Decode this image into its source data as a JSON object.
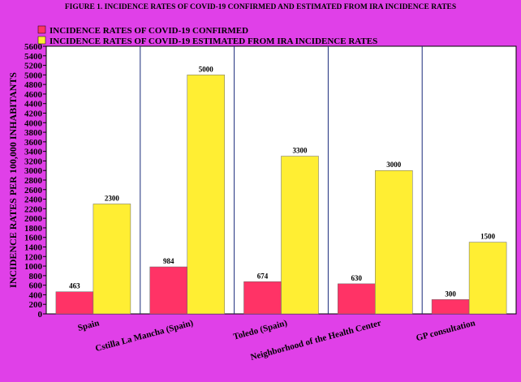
{
  "chart_data": {
    "type": "bar",
    "title": "FIGURE 1. INCIDENCE RATES OF COVID-19 CONFIRMED AND ESTIMATED FROM IRA INCIDENCE RATES",
    "y_label": "INCIDENCE RATES PER 100,000 INHABITANTS",
    "categories": [
      "Spain",
      "Cstilla La Mancha (Spain)",
      "Toledo (Spain)",
      "Neighborhood of the Health Center",
      "GP consultation"
    ],
    "series": [
      {
        "name": "INCIDENCE RATES OF COVID-19 CONFIRMED",
        "color": "#ff3366",
        "values": [
          463,
          984,
          674,
          630,
          300
        ]
      },
      {
        "name": "INCIDENCE RATES OF COVID-19 ESTIMATED FROM IRA INCIDENCE RATES",
        "color": "#ffee33",
        "values": [
          2300,
          5000,
          3300,
          3000,
          1500
        ]
      }
    ],
    "ylim": [
      0,
      5600
    ],
    "yticks": [
      0,
      200,
      400,
      600,
      800,
      1000,
      1200,
      1400,
      1600,
      1800,
      2000,
      2200,
      2400,
      2600,
      2800,
      3000,
      3200,
      3400,
      3600,
      3800,
      4000,
      4200,
      4400,
      4600,
      4800,
      5000,
      5200,
      5400,
      5600
    ]
  }
}
